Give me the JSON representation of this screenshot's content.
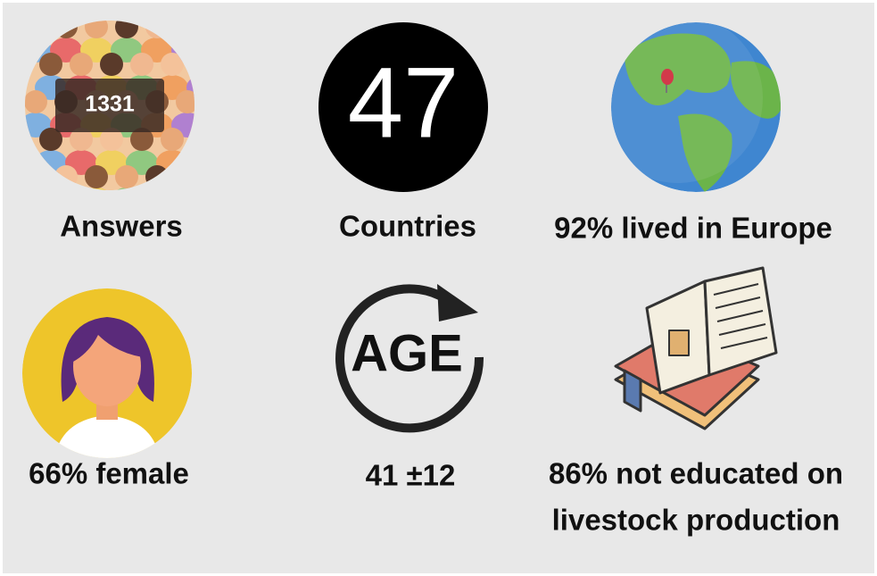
{
  "tiles": [
    {
      "icon_text": "1331",
      "label": [
        "Answers"
      ]
    },
    {
      "icon_text": "47",
      "label": [
        "Countries"
      ]
    },
    {
      "label": [
        "92% lived in Europe"
      ]
    },
    {
      "label": [
        "66% female"
      ]
    },
    {
      "icon_text": "AGE",
      "label": [
        "41 ±12"
      ]
    },
    {
      "label": [
        "86% not educated on",
        "livestock production"
      ]
    }
  ]
}
